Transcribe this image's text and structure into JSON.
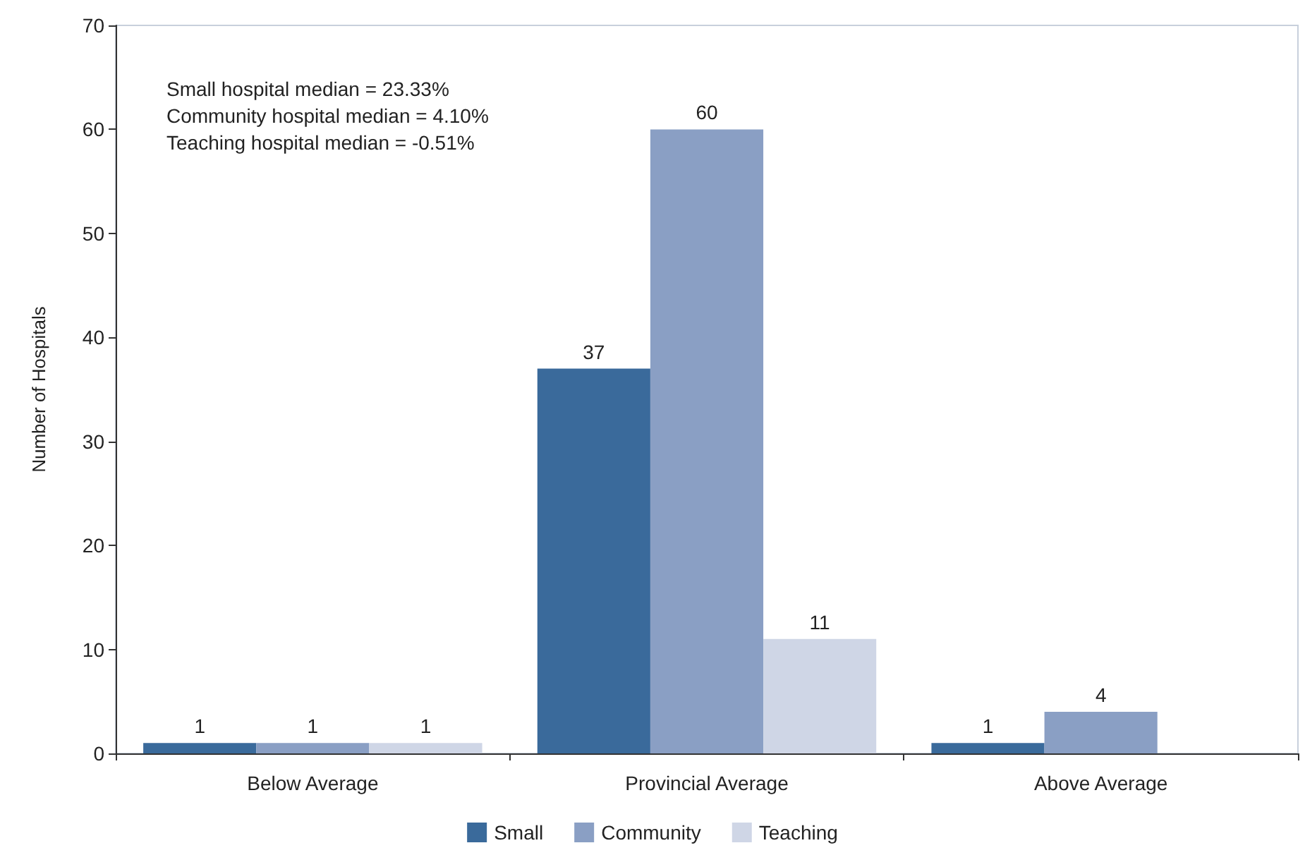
{
  "chart_data": {
    "type": "bar",
    "ylabel": "Number of Hospitals",
    "categories": [
      "Below Average",
      "Provincial Average",
      "Above Average"
    ],
    "series": [
      {
        "name": "Small",
        "color": "#3a6a9b",
        "values": [
          1,
          37,
          1
        ]
      },
      {
        "name": "Community",
        "color": "#8a9fc4",
        "values": [
          1,
          60,
          4
        ]
      },
      {
        "name": "Teaching",
        "color": "#cfd6e6",
        "values": [
          1,
          11,
          null
        ]
      }
    ],
    "ylim": [
      0,
      70
    ],
    "yticks": [
      0,
      10,
      20,
      30,
      40,
      50,
      60,
      70
    ],
    "annotations": [
      "Small hospital median = 23.33%",
      "Community hospital median = 4.10%",
      "Teaching hospital median = -0.51%"
    ],
    "data_labels": true,
    "grid": false,
    "legend": "bottom"
  }
}
